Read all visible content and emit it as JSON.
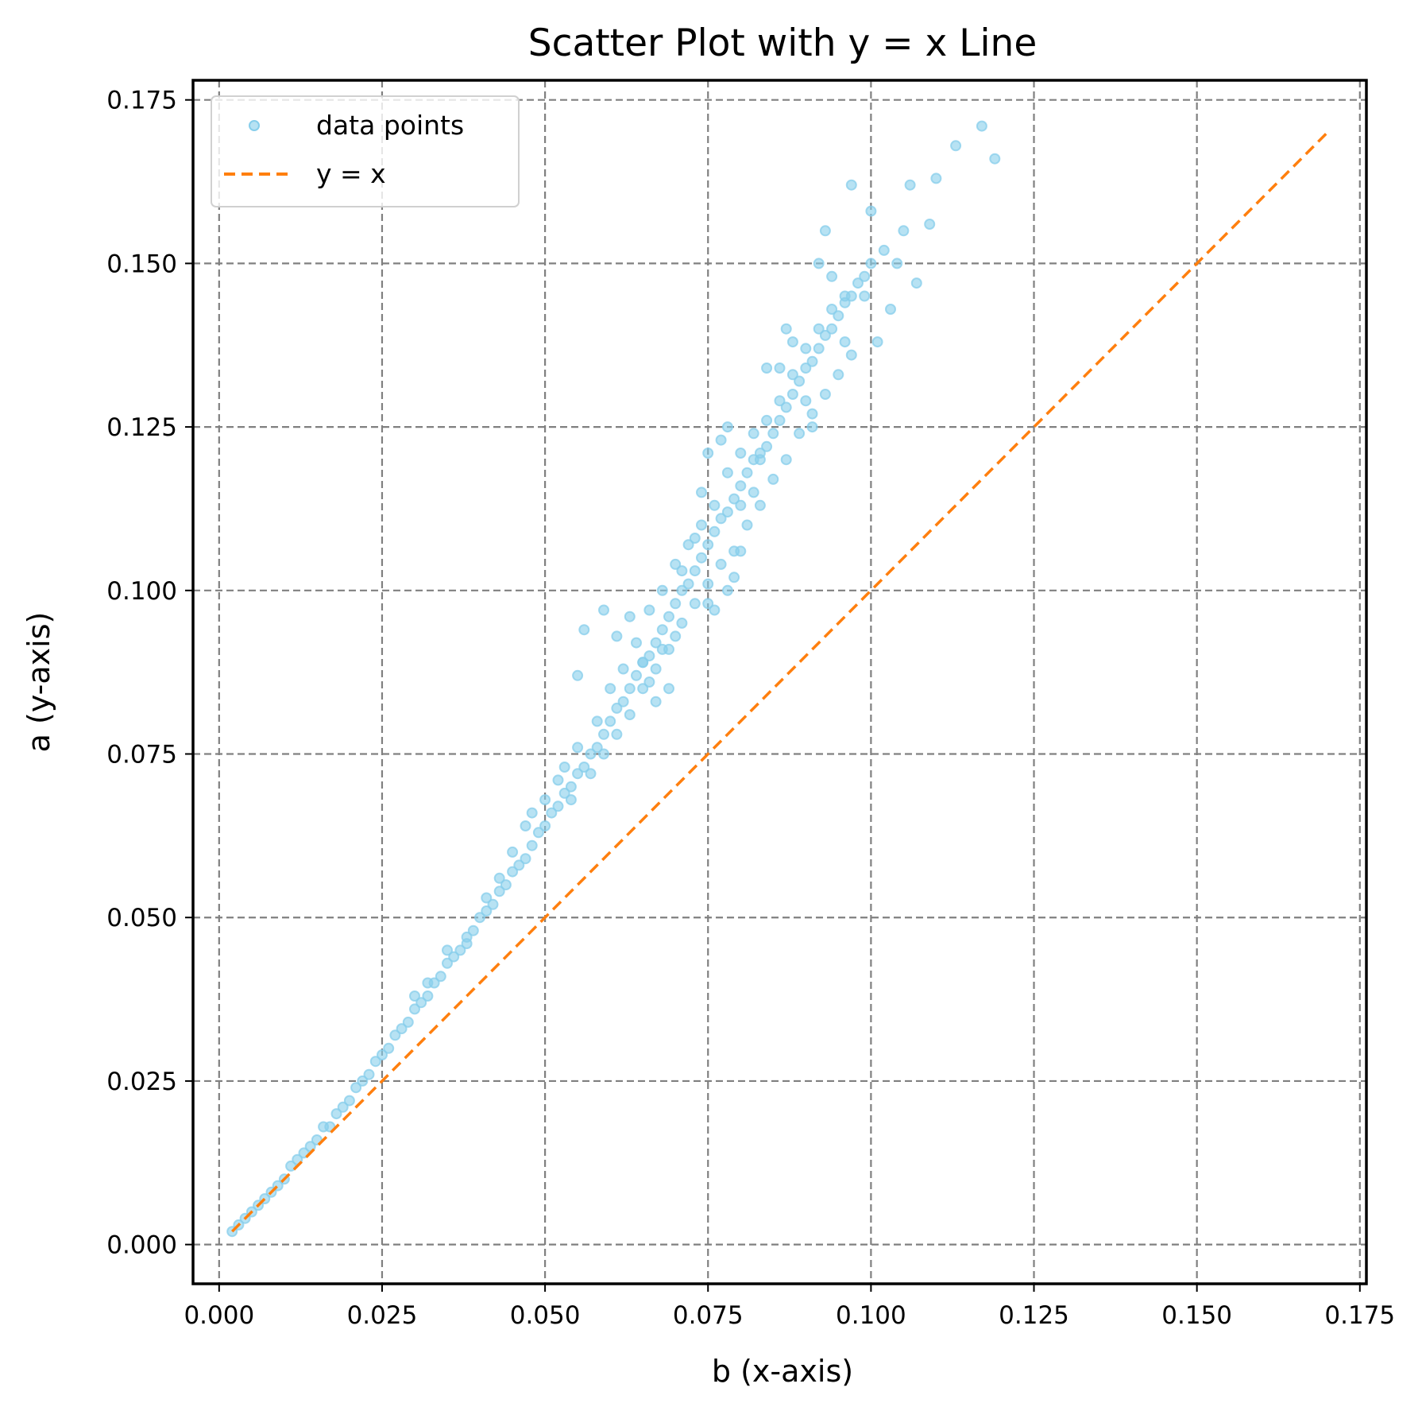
{
  "chart_data": {
    "type": "scatter",
    "title": "Scatter Plot with y = x Line",
    "xlabel": "b (x-axis)",
    "ylabel": "a (y-axis)",
    "xlim": [
      -0.004,
      0.176
    ],
    "ylim": [
      -0.006,
      0.178
    ],
    "xticks": [
      "0.000",
      "0.025",
      "0.050",
      "0.075",
      "0.100",
      "0.125",
      "0.150",
      "0.175"
    ],
    "yticks": [
      "0.000",
      "0.025",
      "0.050",
      "0.075",
      "0.100",
      "0.125",
      "0.150",
      "0.175"
    ],
    "grid": true,
    "legend_position": "top-left",
    "series": [
      {
        "name": "data points",
        "kind": "scatter",
        "color": "#87CEEB",
        "points": [
          [
            0.002,
            0.002
          ],
          [
            0.003,
            0.003
          ],
          [
            0.004,
            0.004
          ],
          [
            0.005,
            0.005
          ],
          [
            0.006,
            0.006
          ],
          [
            0.007,
            0.007
          ],
          [
            0.008,
            0.008
          ],
          [
            0.009,
            0.009
          ],
          [
            0.01,
            0.01
          ],
          [
            0.011,
            0.012
          ],
          [
            0.012,
            0.013
          ],
          [
            0.013,
            0.014
          ],
          [
            0.014,
            0.015
          ],
          [
            0.015,
            0.016
          ],
          [
            0.016,
            0.018
          ],
          [
            0.017,
            0.018
          ],
          [
            0.018,
            0.02
          ],
          [
            0.019,
            0.021
          ],
          [
            0.02,
            0.022
          ],
          [
            0.021,
            0.024
          ],
          [
            0.022,
            0.025
          ],
          [
            0.023,
            0.026
          ],
          [
            0.024,
            0.028
          ],
          [
            0.025,
            0.029
          ],
          [
            0.026,
            0.03
          ],
          [
            0.027,
            0.032
          ],
          [
            0.028,
            0.033
          ],
          [
            0.029,
            0.034
          ],
          [
            0.03,
            0.036
          ],
          [
            0.031,
            0.037
          ],
          [
            0.032,
            0.038
          ],
          [
            0.033,
            0.04
          ],
          [
            0.034,
            0.041
          ],
          [
            0.035,
            0.043
          ],
          [
            0.036,
            0.044
          ],
          [
            0.037,
            0.045
          ],
          [
            0.038,
            0.047
          ],
          [
            0.039,
            0.048
          ],
          [
            0.04,
            0.05
          ],
          [
            0.041,
            0.051
          ],
          [
            0.042,
            0.052
          ],
          [
            0.043,
            0.054
          ],
          [
            0.044,
            0.055
          ],
          [
            0.045,
            0.057
          ],
          [
            0.046,
            0.058
          ],
          [
            0.047,
            0.059
          ],
          [
            0.048,
            0.061
          ],
          [
            0.049,
            0.063
          ],
          [
            0.05,
            0.064
          ],
          [
            0.051,
            0.066
          ],
          [
            0.052,
            0.067
          ],
          [
            0.053,
            0.069
          ],
          [
            0.054,
            0.07
          ],
          [
            0.055,
            0.072
          ],
          [
            0.056,
            0.073
          ],
          [
            0.057,
            0.075
          ],
          [
            0.058,
            0.076
          ],
          [
            0.059,
            0.078
          ],
          [
            0.06,
            0.08
          ],
          [
            0.061,
            0.082
          ],
          [
            0.062,
            0.083
          ],
          [
            0.063,
            0.085
          ],
          [
            0.064,
            0.087
          ],
          [
            0.065,
            0.089
          ],
          [
            0.066,
            0.09
          ],
          [
            0.067,
            0.092
          ],
          [
            0.068,
            0.094
          ],
          [
            0.069,
            0.096
          ],
          [
            0.07,
            0.098
          ],
          [
            0.071,
            0.1
          ],
          [
            0.072,
            0.101
          ],
          [
            0.073,
            0.103
          ],
          [
            0.074,
            0.105
          ],
          [
            0.075,
            0.107
          ],
          [
            0.076,
            0.109
          ],
          [
            0.077,
            0.111
          ],
          [
            0.078,
            0.112
          ],
          [
            0.079,
            0.114
          ],
          [
            0.08,
            0.116
          ],
          [
            0.081,
            0.118
          ],
          [
            0.082,
            0.12
          ],
          [
            0.083,
            0.121
          ],
          [
            0.084,
            0.122
          ],
          [
            0.085,
            0.124
          ],
          [
            0.086,
            0.126
          ],
          [
            0.087,
            0.128
          ],
          [
            0.088,
            0.13
          ],
          [
            0.089,
            0.132
          ],
          [
            0.09,
            0.134
          ],
          [
            0.091,
            0.135
          ],
          [
            0.092,
            0.137
          ],
          [
            0.093,
            0.139
          ],
          [
            0.094,
            0.14
          ],
          [
            0.095,
            0.142
          ],
          [
            0.096,
            0.144
          ],
          [
            0.097,
            0.145
          ],
          [
            0.098,
            0.147
          ],
          [
            0.099,
            0.148
          ],
          [
            0.1,
            0.15
          ],
          [
            0.03,
            0.038
          ],
          [
            0.032,
            0.04
          ],
          [
            0.035,
            0.045
          ],
          [
            0.038,
            0.046
          ],
          [
            0.041,
            0.053
          ],
          [
            0.043,
            0.056
          ],
          [
            0.045,
            0.06
          ],
          [
            0.047,
            0.064
          ],
          [
            0.048,
            0.066
          ],
          [
            0.05,
            0.068
          ],
          [
            0.052,
            0.071
          ],
          [
            0.053,
            0.073
          ],
          [
            0.054,
            0.068
          ],
          [
            0.055,
            0.076
          ],
          [
            0.057,
            0.072
          ],
          [
            0.058,
            0.08
          ],
          [
            0.059,
            0.075
          ],
          [
            0.06,
            0.085
          ],
          [
            0.061,
            0.078
          ],
          [
            0.062,
            0.088
          ],
          [
            0.063,
            0.081
          ],
          [
            0.064,
            0.092
          ],
          [
            0.065,
            0.085
          ],
          [
            0.066,
            0.097
          ],
          [
            0.067,
            0.088
          ],
          [
            0.068,
            0.1
          ],
          [
            0.069,
            0.091
          ],
          [
            0.07,
            0.104
          ],
          [
            0.071,
            0.095
          ],
          [
            0.072,
            0.107
          ],
          [
            0.073,
            0.098
          ],
          [
            0.074,
            0.11
          ],
          [
            0.075,
            0.101
          ],
          [
            0.076,
            0.113
          ],
          [
            0.077,
            0.104
          ],
          [
            0.078,
            0.118
          ],
          [
            0.079,
            0.106
          ],
          [
            0.08,
            0.121
          ],
          [
            0.081,
            0.11
          ],
          [
            0.082,
            0.124
          ],
          [
            0.083,
            0.113
          ],
          [
            0.084,
            0.126
          ],
          [
            0.085,
            0.117
          ],
          [
            0.086,
            0.129
          ],
          [
            0.087,
            0.12
          ],
          [
            0.088,
            0.133
          ],
          [
            0.089,
            0.124
          ],
          [
            0.09,
            0.137
          ],
          [
            0.091,
            0.127
          ],
          [
            0.092,
            0.14
          ],
          [
            0.093,
            0.13
          ],
          [
            0.094,
            0.143
          ],
          [
            0.095,
            0.133
          ],
          [
            0.096,
            0.138
          ],
          [
            0.097,
            0.136
          ],
          [
            0.059,
            0.097
          ],
          [
            0.056,
            0.094
          ],
          [
            0.055,
            0.087
          ],
          [
            0.061,
            0.093
          ],
          [
            0.063,
            0.096
          ],
          [
            0.066,
            0.086
          ],
          [
            0.068,
            0.091
          ],
          [
            0.07,
            0.093
          ],
          [
            0.073,
            0.108
          ],
          [
            0.074,
            0.115
          ],
          [
            0.075,
            0.121
          ],
          [
            0.077,
            0.123
          ],
          [
            0.078,
            0.125
          ],
          [
            0.079,
            0.102
          ],
          [
            0.08,
            0.106
          ],
          [
            0.082,
            0.115
          ],
          [
            0.083,
            0.12
          ],
          [
            0.084,
            0.134
          ],
          [
            0.086,
            0.134
          ],
          [
            0.087,
            0.14
          ],
          [
            0.088,
            0.138
          ],
          [
            0.09,
            0.129
          ],
          [
            0.091,
            0.125
          ],
          [
            0.092,
            0.15
          ],
          [
            0.093,
            0.155
          ],
          [
            0.094,
            0.148
          ],
          [
            0.096,
            0.145
          ],
          [
            0.097,
            0.162
          ],
          [
            0.099,
            0.145
          ],
          [
            0.1,
            0.158
          ],
          [
            0.101,
            0.138
          ],
          [
            0.102,
            0.152
          ],
          [
            0.103,
            0.143
          ],
          [
            0.104,
            0.15
          ],
          [
            0.105,
            0.155
          ],
          [
            0.106,
            0.162
          ],
          [
            0.107,
            0.147
          ],
          [
            0.109,
            0.156
          ],
          [
            0.11,
            0.163
          ],
          [
            0.113,
            0.168
          ],
          [
            0.117,
            0.171
          ],
          [
            0.119,
            0.166
          ],
          [
            0.075,
            0.098
          ],
          [
            0.071,
            0.103
          ],
          [
            0.076,
            0.097
          ],
          [
            0.078,
            0.1
          ],
          [
            0.08,
            0.113
          ],
          [
            0.069,
            0.085
          ],
          [
            0.067,
            0.083
          ],
          [
            0.065,
            0.089
          ]
        ]
      },
      {
        "name": "y = x",
        "kind": "line",
        "color": "#FF7F0E",
        "points": [
          [
            0.002,
            0.002
          ],
          [
            0.17,
            0.17
          ]
        ]
      }
    ]
  }
}
